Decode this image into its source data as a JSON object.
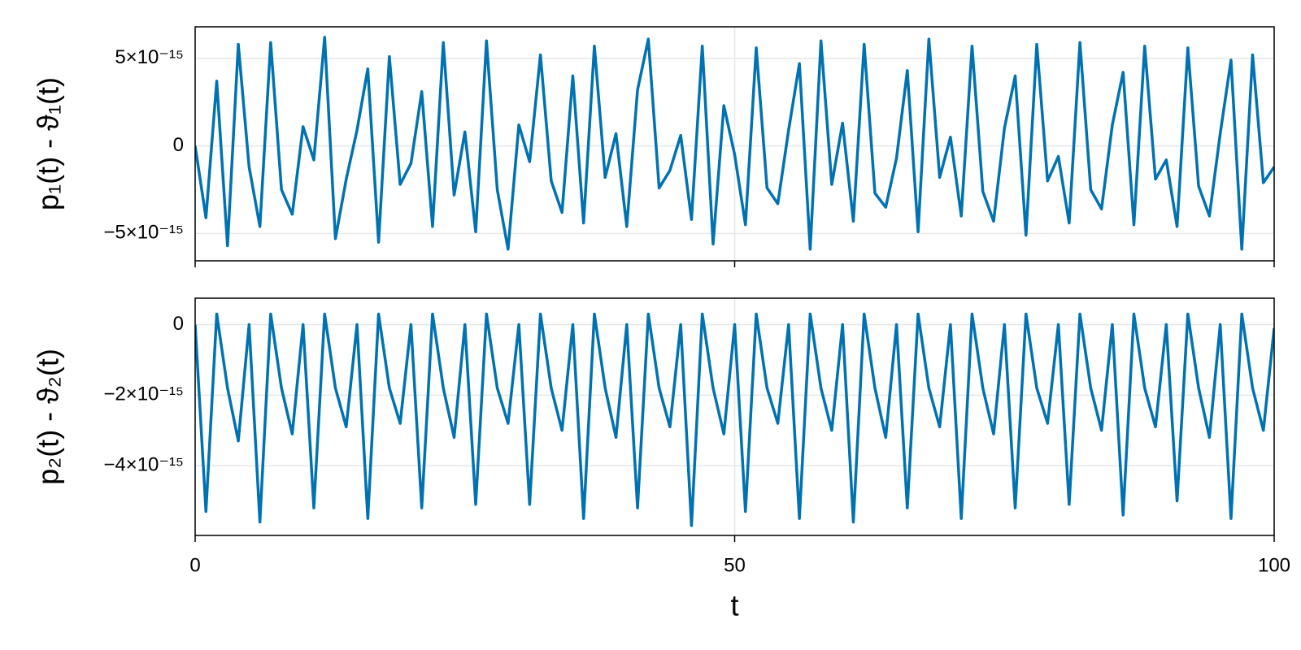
{
  "chart_data": [
    {
      "type": "line",
      "ylabel": "p₁(t) - ϑ₁(t)",
      "x": [
        0,
        1,
        2,
        3,
        4,
        5,
        6,
        7,
        8,
        9,
        10,
        11,
        12,
        13,
        14,
        15,
        16,
        17,
        18,
        19,
        20,
        21,
        22,
        23,
        24,
        25,
        26,
        27,
        28,
        29,
        30,
        31,
        32,
        33,
        34,
        35,
        36,
        37,
        38,
        39,
        40,
        41,
        42,
        43,
        44,
        45,
        46,
        47,
        48,
        49,
        50,
        51,
        52,
        53,
        54,
        55,
        56,
        57,
        58,
        59,
        60,
        61,
        62,
        63,
        64,
        65,
        66,
        67,
        68,
        69,
        70,
        71,
        72,
        73,
        74,
        75,
        76,
        77,
        78,
        79,
        80,
        81,
        82,
        83,
        84,
        85,
        86,
        87,
        88,
        89,
        90,
        91,
        92,
        93,
        94,
        95,
        96,
        97,
        98,
        99,
        100
      ],
      "xlim": [
        0,
        100
      ],
      "xticks": [
        0,
        50,
        100
      ],
      "ylim": [
        -6.56e-15,
        6.8e-15
      ],
      "yticks": [
        {
          "value": -5e-15,
          "label": "−5×10⁻¹⁵"
        },
        0,
        {
          "value": 5e-15,
          "label": "5×10⁻¹⁵"
        }
      ],
      "grid": true,
      "series": [
        {
          "color": "#0072b2",
          "values": [
            0,
            -4.1e-15,
            3.7e-15,
            -5.7e-15,
            5.8e-15,
            -1.2e-15,
            -4.6e-15,
            5.9e-15,
            -2.5e-15,
            -3.9e-15,
            1.1e-15,
            -8e-16,
            6.2e-15,
            -5.3e-15,
            -1.9e-15,
            9e-16,
            4.4e-15,
            -5.5e-15,
            5.1e-15,
            -2.2e-15,
            -1e-15,
            3.1e-15,
            -4.6e-15,
            5.9e-15,
            -2.8e-15,
            8e-16,
            -4.9e-15,
            6e-15,
            -2.5e-15,
            -5.9e-15,
            1.2e-15,
            -9e-16,
            5.2e-15,
            -2e-15,
            -3.8e-15,
            4e-15,
            -4.4e-15,
            5.7e-15,
            -1.8e-15,
            7e-16,
            -4.6e-15,
            3.2e-15,
            6.1e-15,
            -2.4e-15,
            -1.4e-15,
            6e-16,
            -4.2e-15,
            5.7e-15,
            -5.6e-15,
            2.3e-15,
            -5e-16,
            -4.5e-15,
            5.6e-15,
            -2.4e-15,
            -3.3e-15,
            9e-16,
            4.7e-15,
            -5.9e-15,
            6e-15,
            -2.2e-15,
            1.3e-15,
            -4.3e-15,
            5.8e-15,
            -2.7e-15,
            -3.5e-15,
            -7e-16,
            4.3e-15,
            -4.9e-15,
            6.1e-15,
            -1.8e-15,
            5e-16,
            -4e-15,
            5.7e-15,
            -2.6e-15,
            -4.3e-15,
            1e-15,
            4e-15,
            -5.1e-15,
            5.8e-15,
            -2e-15,
            -6e-16,
            -4.4e-15,
            5.9e-15,
            -2.5e-15,
            -3.6e-15,
            1.2e-15,
            4.2e-15,
            -4.5e-15,
            5.7e-15,
            -1.9e-15,
            -8e-16,
            -4.6e-15,
            5.6e-15,
            -2.3e-15,
            -4e-15,
            7e-16,
            4.9e-15,
            -5.9e-15,
            5.2e-15,
            -2.1e-15,
            -1.2e-15
          ]
        }
      ]
    },
    {
      "type": "line",
      "ylabel": "p₂(t) - ϑ₂(t)",
      "xlabel": "t",
      "x": [
        0,
        1,
        2,
        3,
        4,
        5,
        6,
        7,
        8,
        9,
        10,
        11,
        12,
        13,
        14,
        15,
        16,
        17,
        18,
        19,
        20,
        21,
        22,
        23,
        24,
        25,
        26,
        27,
        28,
        29,
        30,
        31,
        32,
        33,
        34,
        35,
        36,
        37,
        38,
        39,
        40,
        41,
        42,
        43,
        44,
        45,
        46,
        47,
        48,
        49,
        50,
        51,
        52,
        53,
        54,
        55,
        56,
        57,
        58,
        59,
        60,
        61,
        62,
        63,
        64,
        65,
        66,
        67,
        68,
        69,
        70,
        71,
        72,
        73,
        74,
        75,
        76,
        77,
        78,
        79,
        80,
        81,
        82,
        83,
        84,
        85,
        86,
        87,
        88,
        89,
        90,
        91,
        92,
        93,
        94,
        95,
        96,
        97,
        98,
        99,
        100
      ],
      "xlim": [
        0,
        100
      ],
      "xticks": [
        0,
        50,
        100
      ],
      "ylim": [
        -5.98e-15,
        7.5e-16
      ],
      "yticks": [
        {
          "value": -4e-15,
          "label": "−4×10⁻¹⁵"
        },
        {
          "value": -2e-15,
          "label": "−2×10⁻¹⁵"
        },
        0
      ],
      "grid": true,
      "series": [
        {
          "color": "#0072b2",
          "values": [
            0,
            -5.3e-15,
            3e-16,
            -1.8e-15,
            -3.3e-15,
            0,
            -5.6e-15,
            3e-16,
            -1.8e-15,
            -3.1e-15,
            0,
            -5.2e-15,
            3e-16,
            -1.8e-15,
            -2.9e-15,
            0,
            -5.5e-15,
            3e-16,
            -1.8e-15,
            -2.8e-15,
            0,
            -5.2e-15,
            3e-16,
            -1.8e-15,
            -3.2e-15,
            0,
            -5.1e-15,
            3e-16,
            -1.8e-15,
            -2.8e-15,
            0,
            -5.1e-15,
            3e-16,
            -1.8e-15,
            -3e-15,
            0,
            -5.5e-15,
            3e-16,
            -1.8e-15,
            -3.2e-15,
            0,
            -5.2e-15,
            3e-16,
            -1.8e-15,
            -2.9e-15,
            0,
            -5.7e-15,
            3e-16,
            -1.8e-15,
            -3.1e-15,
            0,
            -5.3e-15,
            3e-16,
            -1.8e-15,
            -2.8e-15,
            0,
            -5.5e-15,
            3e-16,
            -1.8e-15,
            -3e-15,
            0,
            -5.6e-15,
            3e-16,
            -1.8e-15,
            -3.2e-15,
            0,
            -5.2e-15,
            3e-16,
            -1.8e-15,
            -2.9e-15,
            0,
            -5.5e-15,
            3e-16,
            -1.8e-15,
            -3.1e-15,
            0,
            -5.2e-15,
            3e-16,
            -1.8e-15,
            -2.8e-15,
            0,
            -5.1e-15,
            3e-16,
            -1.8e-15,
            -3e-15,
            0,
            -5.4e-15,
            3e-16,
            -1.8e-15,
            -2.9e-15,
            0,
            -5e-15,
            3e-16,
            -1.8e-15,
            -3.2e-15,
            0,
            -5.5e-15,
            3e-16,
            -1.8e-15,
            -3e-15,
            -1e-16
          ]
        }
      ]
    }
  ]
}
